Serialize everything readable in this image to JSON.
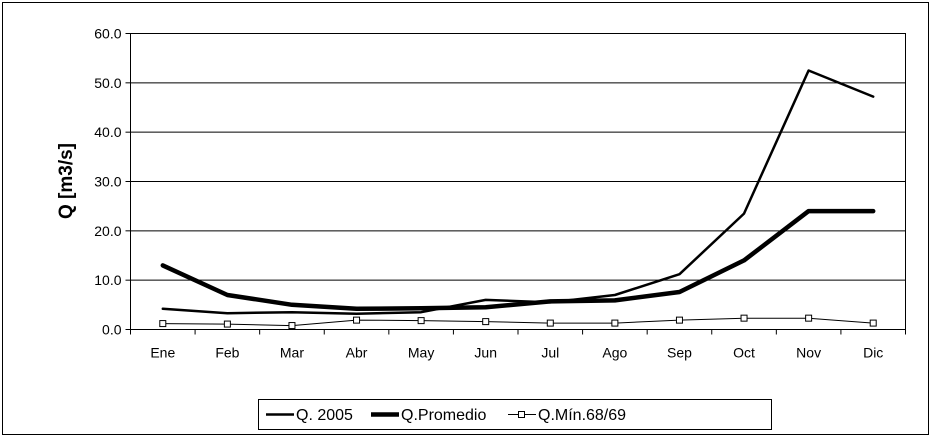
{
  "chart_data": {
    "type": "line",
    "categories": [
      "Ene",
      "Feb",
      "Mar",
      "Abr",
      "May",
      "Jun",
      "Jul",
      "Ago",
      "Sep",
      "Oct",
      "Nov",
      "Dic"
    ],
    "series": [
      {
        "name": "Q. 2005",
        "values": [
          4.2,
          3.3,
          3.5,
          3.2,
          3.5,
          6.0,
          5.5,
          7.0,
          11.2,
          23.5,
          52.5,
          47.2
        ],
        "line_weight": "medium",
        "marker": "none",
        "color": "#000000"
      },
      {
        "name": "Q.Promedio",
        "values": [
          13.0,
          7.0,
          5.0,
          4.2,
          4.3,
          4.5,
          5.7,
          5.9,
          7.6,
          14.0,
          24.0,
          24.0
        ],
        "line_weight": "heavy",
        "marker": "none",
        "color": "#000000"
      },
      {
        "name": "Q.Mín.68/69",
        "values": [
          1.2,
          1.1,
          0.8,
          1.9,
          1.8,
          1.6,
          1.3,
          1.3,
          1.9,
          2.3,
          2.3,
          1.3
        ],
        "line_weight": "thin",
        "marker": "square",
        "color": "#000000"
      }
    ],
    "title": "",
    "xlabel": "",
    "ylabel": "Q [m3/s]",
    "ylim": [
      0,
      60
    ],
    "yticks": [
      "0.0",
      "10.0",
      "20.0",
      "30.0",
      "40.0",
      "50.0",
      "60.0"
    ],
    "grid": "horizontal",
    "legend_position": "bottom"
  }
}
